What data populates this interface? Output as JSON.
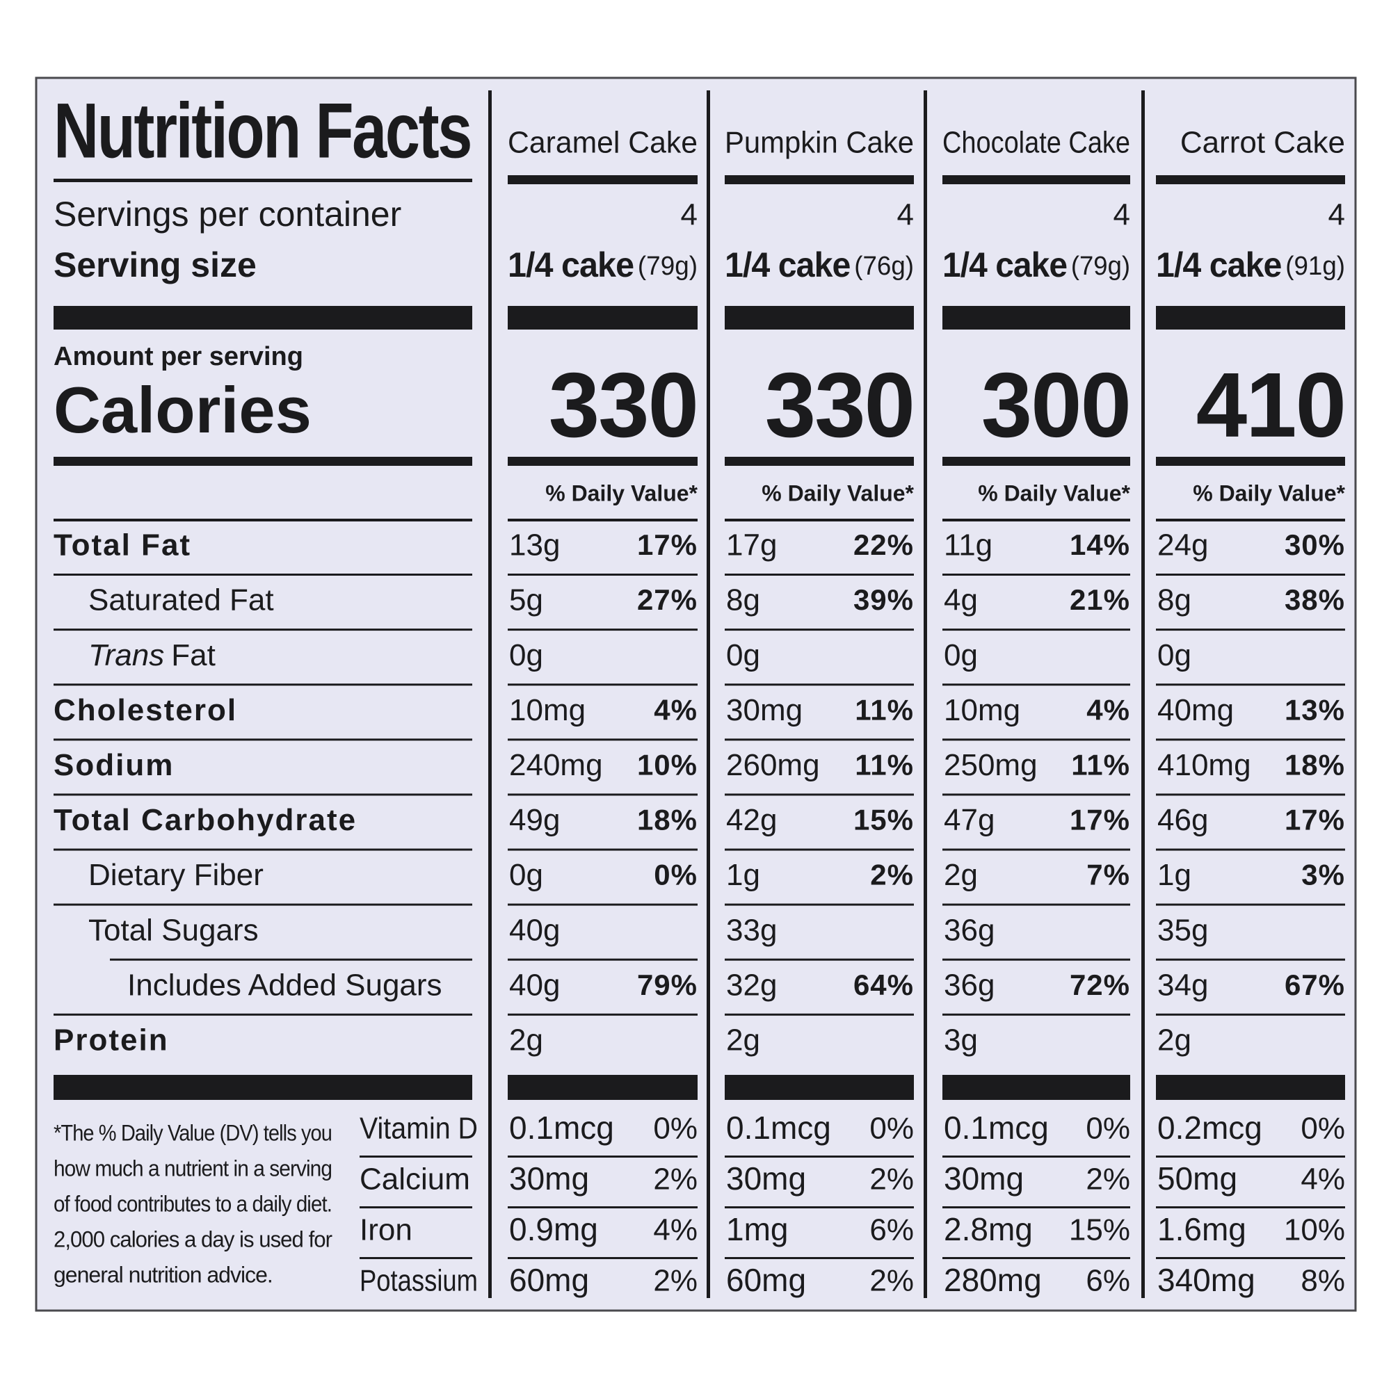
{
  "title": "Nutrition Facts",
  "labels": {
    "servings": "Servings per container",
    "serving_size": "Serving size",
    "amount": "Amount per serving",
    "calories": "Calories",
    "daily_value": "% Daily Value*"
  },
  "products": [
    {
      "name": "Caramel Cake",
      "servings": "4",
      "serving_size": "1/4 cake",
      "serving_weight": "(79g)",
      "calories": "330"
    },
    {
      "name": "Pumpkin Cake",
      "servings": "4",
      "serving_size": "1/4 cake",
      "serving_weight": "(76g)",
      "calories": "330"
    },
    {
      "name": "Chocolate Cake",
      "servings": "4",
      "serving_size": "1/4 cake",
      "serving_weight": "(79g)",
      "calories": "300"
    },
    {
      "name": "Carrot Cake",
      "servings": "4",
      "serving_size": "1/4 cake",
      "serving_weight": "(91g)",
      "calories": "410"
    }
  ],
  "nutrients": [
    {
      "label": "Total Fat",
      "values": [
        [
          "13g",
          "17%"
        ],
        [
          "17g",
          "22%"
        ],
        [
          "11g",
          "14%"
        ],
        [
          "24g",
          "30%"
        ]
      ]
    },
    {
      "label": "Saturated Fat",
      "values": [
        [
          "5g",
          "27%"
        ],
        [
          "8g",
          "39%"
        ],
        [
          "4g",
          "21%"
        ],
        [
          "8g",
          "38%"
        ]
      ]
    },
    {
      "label_italic": "Trans",
      "label": "Fat",
      "values": [
        [
          "0g"
        ],
        [
          "0g"
        ],
        [
          "0g"
        ],
        [
          "0g"
        ]
      ]
    },
    {
      "label": "Cholesterol",
      "values": [
        [
          "10mg",
          "4%"
        ],
        [
          "30mg",
          "11%"
        ],
        [
          "10mg",
          "4%"
        ],
        [
          "40mg",
          "13%"
        ]
      ]
    },
    {
      "label": "Sodium",
      "values": [
        [
          "240mg",
          "10%"
        ],
        [
          "260mg",
          "11%"
        ],
        [
          "250mg",
          "11%"
        ],
        [
          "410mg",
          "18%"
        ]
      ]
    },
    {
      "label": "Total Carbohydrate",
      "values": [
        [
          "49g",
          "18%"
        ],
        [
          "42g",
          "15%"
        ],
        [
          "47g",
          "17%"
        ],
        [
          "46g",
          "17%"
        ]
      ]
    },
    {
      "label": "Dietary Fiber",
      "values": [
        [
          "0g",
          "0%"
        ],
        [
          "1g",
          "2%"
        ],
        [
          "2g",
          "7%"
        ],
        [
          "1g",
          "3%"
        ]
      ]
    },
    {
      "label": "Total Sugars",
      "values": [
        [
          "40g"
        ],
        [
          "33g"
        ],
        [
          "36g"
        ],
        [
          "35g"
        ]
      ]
    },
    {
      "label": "Includes Added Sugars",
      "values": [
        [
          "40g",
          "79%"
        ],
        [
          "32g",
          "64%"
        ],
        [
          "36g",
          "72%"
        ],
        [
          "34g",
          "67%"
        ]
      ]
    },
    {
      "label": "Protein",
      "values": [
        [
          "2g"
        ],
        [
          "2g"
        ],
        [
          "3g"
        ],
        [
          "2g"
        ]
      ]
    }
  ],
  "vitamins": [
    {
      "label": "Vitamin D",
      "values": [
        [
          "0.1mcg",
          "0%"
        ],
        [
          "0.1mcg",
          "0%"
        ],
        [
          "0.1mcg",
          "0%"
        ],
        [
          "0.2mcg",
          "0%"
        ]
      ]
    },
    {
      "label": "Calcium",
      "values": [
        [
          "30mg",
          "2%"
        ],
        [
          "30mg",
          "2%"
        ],
        [
          "30mg",
          "2%"
        ],
        [
          "50mg",
          "4%"
        ]
      ]
    },
    {
      "label": "Iron",
      "values": [
        [
          "0.9mg",
          "4%"
        ],
        [
          "1mg",
          "6%"
        ],
        [
          "2.8mg",
          "15%"
        ],
        [
          "1.6mg",
          "10%"
        ]
      ]
    },
    {
      "label": "Potassium",
      "values": [
        [
          "60mg",
          "2%"
        ],
        [
          "60mg",
          "2%"
        ],
        [
          "280mg",
          "6%"
        ],
        [
          "340mg",
          "8%"
        ]
      ]
    }
  ],
  "footnote": [
    "*The % Daily Value (DV) tells you",
    "how much a nutrient in a serving",
    "of food contributes to a daily diet.",
    "2,000 calories a day is used for",
    "general nutrition advice."
  ]
}
